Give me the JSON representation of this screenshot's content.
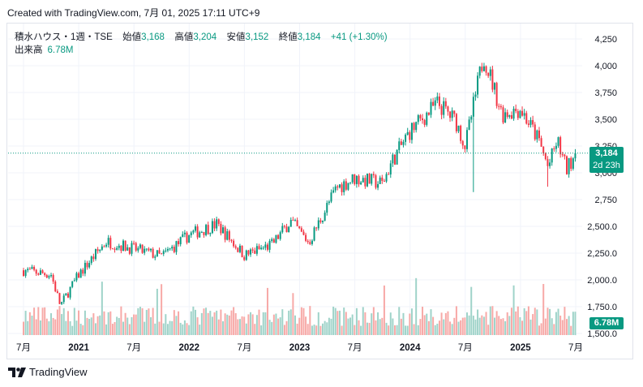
{
  "header": {
    "created_text": "Created with TradingView.com, 7月 01, 2025 17:11 UTC+9"
  },
  "legend": {
    "symbol": "積水ハウス・1週・TSE",
    "open_label": "始値",
    "open": "3,168",
    "high_label": "高値",
    "high": "3,204",
    "low_label": "安値",
    "low": "3,152",
    "close_label": "終値",
    "close": "3,184",
    "change": "+41 (+1.30%)",
    "volume_label": "出来高",
    "volume": "6.78M"
  },
  "price_tag": {
    "price": "3,184",
    "countdown": "2d 23h"
  },
  "volume_tag": {
    "value": "6.78M"
  },
  "footer": {
    "brand": "TradingView"
  },
  "colors": {
    "up": "#089981",
    "down": "#f23645",
    "vol_up": "#9fd3c9",
    "vol_down": "#f7a9a7",
    "grid": "#f0f3fa",
    "text": "#131722"
  },
  "chart_data": {
    "type": "candlestick",
    "interval": "1週",
    "y_axis_ticks": [
      "4,250",
      "4,000",
      "3,750",
      "3,500",
      "3,250",
      "3,000",
      "2,750",
      "2,500.0",
      "2,250.0",
      "2,000.0",
      "1,750.0",
      "1,500.0"
    ],
    "ylim": [
      1500,
      4250
    ],
    "x_axis_ticks": [
      "7月",
      "2021",
      "7月",
      "2022",
      "7月",
      "2023",
      "7月",
      "2024",
      "7月",
      "2025",
      "7月"
    ],
    "last_price": 3184,
    "approx_weekly_close_path": [
      {
        "date": "2020-07",
        "close": 2090
      },
      {
        "date": "2020-10",
        "close": 2050
      },
      {
        "date": "2020-11",
        "close": 1760
      },
      {
        "date": "2021-01",
        "close": 2050
      },
      {
        "date": "2021-04",
        "close": 2360
      },
      {
        "date": "2021-07",
        "close": 2290
      },
      {
        "date": "2021-10",
        "close": 2220
      },
      {
        "date": "2022-01",
        "close": 2420
      },
      {
        "date": "2022-04",
        "close": 2520
      },
      {
        "date": "2022-07",
        "close": 2230
      },
      {
        "date": "2022-10",
        "close": 2330
      },
      {
        "date": "2022-12",
        "close": 2550
      },
      {
        "date": "2023-02",
        "close": 2350
      },
      {
        "date": "2023-05",
        "close": 2860
      },
      {
        "date": "2023-07",
        "close": 2950
      },
      {
        "date": "2023-10",
        "close": 2900
      },
      {
        "date": "2023-11",
        "close": 3100
      },
      {
        "date": "2024-01",
        "close": 3390
      },
      {
        "date": "2024-04",
        "close": 3650
      },
      {
        "date": "2024-06",
        "close": 3480
      },
      {
        "date": "2024-07",
        "close": 3250
      },
      {
        "date": "2024-09",
        "close": 4100
      },
      {
        "date": "2024-11",
        "close": 3550
      },
      {
        "date": "2025-01",
        "close": 3600
      },
      {
        "date": "2025-03",
        "close": 3300
      },
      {
        "date": "2025-04",
        "close": 3050
      },
      {
        "date": "2025-05",
        "close": 3300
      },
      {
        "date": "2025-06",
        "close": 3030
      },
      {
        "date": "2025-06-30",
        "close": 3184
      }
    ],
    "spikes": [
      {
        "date": "2024-08",
        "low": 2820
      },
      {
        "date": "2025-04",
        "low": 2870
      }
    ]
  }
}
